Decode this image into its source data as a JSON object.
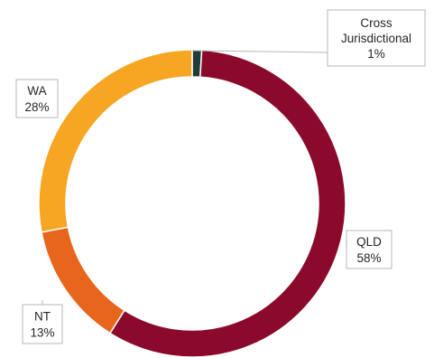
{
  "chart_data": {
    "type": "pie",
    "variant": "donut",
    "title": "",
    "categories": [
      "Cross Jurisdictional",
      "QLD",
      "NT",
      "WA"
    ],
    "values": [
      1,
      58,
      13,
      28
    ],
    "series": [
      {
        "name": "",
        "values": [
          1,
          58,
          13,
          28
        ]
      }
    ],
    "colors": [
      "#1e3d3a",
      "#8b0a2c",
      "#e8661c",
      "#f6a623"
    ],
    "labels": [
      {
        "lines": [
          "Cross",
          "Jurisdictional"
        ],
        "pct": "1%"
      },
      {
        "lines": [
          "QLD"
        ],
        "pct": "58%"
      },
      {
        "lines": [
          "NT"
        ],
        "pct": "13%"
      },
      {
        "lines": [
          "WA"
        ],
        "pct": "28%"
      }
    ],
    "legend": "none"
  }
}
